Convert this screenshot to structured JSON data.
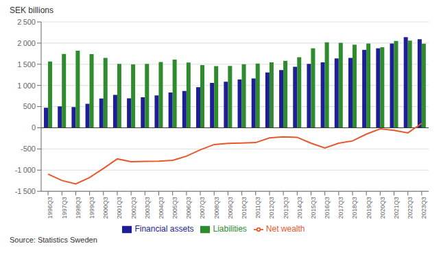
{
  "chart_data": {
    "type": "bar",
    "ylabel": "SEK billions",
    "annotations": [
      "Source: Statistics Sweden"
    ],
    "categories": [
      "1996Q3",
      "1997Q3",
      "1998Q3",
      "1999Q3",
      "2000Q3",
      "2001Q3",
      "2002Q3",
      "2003Q3",
      "2004Q3",
      "2005Q3",
      "2006Q3",
      "2007Q3",
      "2008Q3",
      "2009Q3",
      "2010Q3",
      "2011Q3",
      "2012Q3",
      "2013Q3",
      "2014Q3",
      "2015Q3",
      "2016Q3",
      "2017Q3",
      "2018Q3",
      "2019Q3",
      "2020Q3",
      "2021Q3",
      "2022Q3",
      "2023Q3"
    ],
    "series": [
      {
        "name": "Financial assets",
        "type": "bar",
        "color": "#1e1e96",
        "values": [
          475,
          505,
          490,
          565,
          690,
          775,
          695,
          720,
          765,
          835,
          870,
          960,
          1060,
          1090,
          1140,
          1165,
          1305,
          1365,
          1440,
          1510,
          1545,
          1640,
          1650,
          1840,
          1875,
          1990,
          2140,
          2090
        ]
      },
      {
        "name": "Liabilities",
        "type": "bar",
        "color": "#2e8b2e",
        "values": [
          1565,
          1745,
          1820,
          1740,
          1650,
          1510,
          1495,
          1510,
          1555,
          1610,
          1540,
          1480,
          1455,
          1460,
          1500,
          1515,
          1545,
          1580,
          1665,
          1875,
          2020,
          2005,
          1960,
          1990,
          1900,
          2050,
          2060,
          1985
        ]
      },
      {
        "name": "Net wealth",
        "type": "line",
        "color": "#e8572a",
        "values": [
          -1095,
          -1245,
          -1325,
          -1175,
          -960,
          -735,
          -800,
          -795,
          -790,
          -770,
          -670,
          -520,
          -395,
          -370,
          -360,
          -350,
          -240,
          -215,
          -225,
          -365,
          -475,
          -365,
          -310,
          -150,
          -25,
          -60,
          -120,
          105
        ]
      }
    ],
    "ylim": [
      -1500,
      2500
    ],
    "yticks": [
      {
        "value": -1500,
        "label": "-1 500"
      },
      {
        "value": -1000,
        "label": "-1 000"
      },
      -500,
      0,
      500,
      {
        "value": 1000,
        "label": "1 000"
      },
      {
        "value": 1500,
        "label": "1 500"
      },
      {
        "value": 2000,
        "label": "2 000"
      },
      {
        "value": 2500,
        "label": "2 500"
      }
    ],
    "grid": true,
    "legend": "bottom"
  }
}
